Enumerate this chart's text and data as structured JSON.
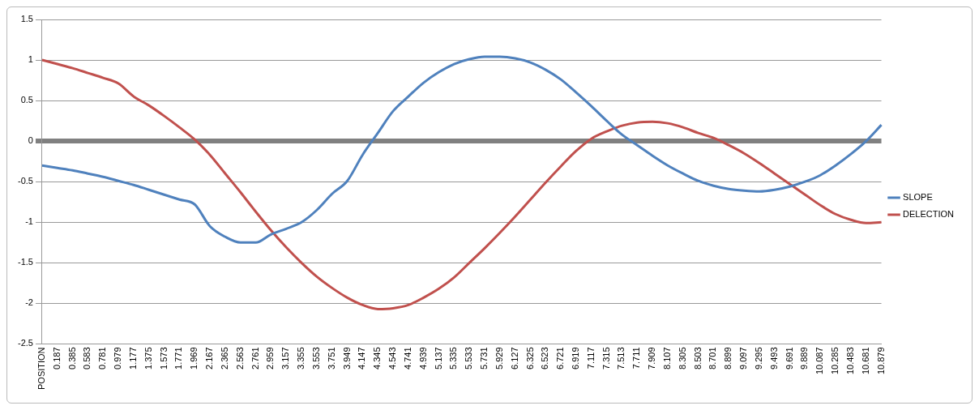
{
  "chart_data": {
    "type": "line",
    "categories": [
      "POSITION",
      "0.187",
      "0.385",
      "0.583",
      "0.781",
      "0.979",
      "1.177",
      "1.375",
      "1.573",
      "1.771",
      "1.969",
      "2.167",
      "2.365",
      "2.563",
      "2.761",
      "2.959",
      "3.157",
      "3.355",
      "3.553",
      "3.751",
      "3.949",
      "4.147",
      "4.345",
      "4.543",
      "4.741",
      "4.939",
      "5.137",
      "5.335",
      "5.533",
      "5.731",
      "5.929",
      "6.127",
      "6.325",
      "6.523",
      "6.721",
      "6.919",
      "7.117",
      "7.315",
      "7.513",
      "7.711",
      "7.909",
      "8.107",
      "8.305",
      "8.503",
      "8.701",
      "8.899",
      "9.097",
      "9.295",
      "9.493",
      "9.691",
      "9.889",
      "10.087",
      "10.285",
      "10.483",
      "10.681",
      "10.879"
    ],
    "series": [
      {
        "name": "SLOPE",
        "color": "#4f81bd",
        "values": [
          -0.3,
          -0.33,
          -0.36,
          -0.4,
          -0.44,
          -0.49,
          -0.54,
          -0.6,
          -0.66,
          -0.72,
          -0.78,
          -1.05,
          -1.18,
          -1.25,
          -1.25,
          -1.15,
          -1.08,
          -1.0,
          -0.85,
          -0.65,
          -0.49,
          -0.17,
          0.1,
          0.37,
          0.55,
          0.72,
          0.85,
          0.95,
          1.01,
          1.04,
          1.04,
          1.02,
          0.97,
          0.88,
          0.76,
          0.6,
          0.43,
          0.25,
          0.08,
          -0.05,
          -0.18,
          -0.3,
          -0.4,
          -0.49,
          -0.55,
          -0.59,
          -0.61,
          -0.62,
          -0.6,
          -0.56,
          -0.5,
          -0.42,
          -0.3,
          -0.16,
          0.0,
          0.2
        ]
      },
      {
        "name": "DELECTION",
        "color": "#c0504d",
        "values": [
          1.0,
          0.95,
          0.9,
          0.84,
          0.78,
          0.71,
          0.55,
          0.44,
          0.31,
          0.17,
          0.02,
          -0.17,
          -0.4,
          -0.63,
          -0.87,
          -1.1,
          -1.31,
          -1.5,
          -1.67,
          -1.81,
          -1.93,
          -2.02,
          -2.07,
          -2.06,
          -2.02,
          -1.93,
          -1.82,
          -1.68,
          -1.5,
          -1.32,
          -1.13,
          -0.93,
          -0.72,
          -0.51,
          -0.31,
          -0.12,
          0.03,
          0.12,
          0.19,
          0.23,
          0.24,
          0.22,
          0.17,
          0.1,
          0.04,
          -0.05,
          -0.15,
          -0.27,
          -0.4,
          -0.53,
          -0.66,
          -0.79,
          -0.9,
          -0.97,
          -1.01,
          -1.0
        ]
      }
    ],
    "ylim": [
      -2.5,
      1.5
    ],
    "yticks": [
      -2.5,
      -2,
      -1.5,
      -1,
      -0.5,
      0,
      0.5,
      1,
      1.5
    ],
    "grid": "y",
    "legend": "right",
    "marker": "none",
    "line_style": "solid"
  }
}
